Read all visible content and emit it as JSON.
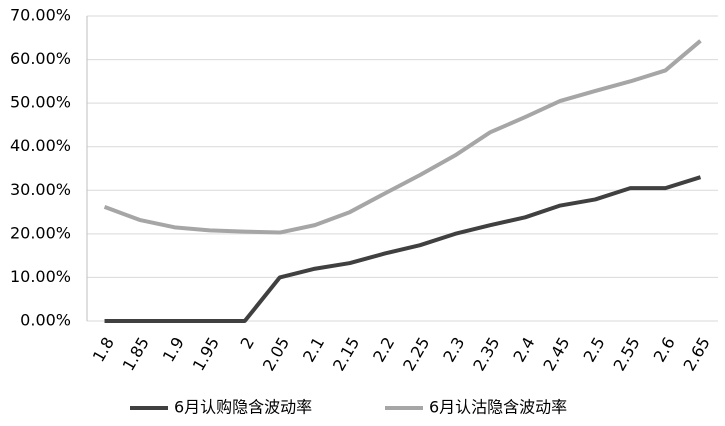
{
  "chart_data": {
    "type": "line",
    "categories": [
      "1.8",
      "1.85",
      "1.9",
      "1.95",
      "2",
      "2.05",
      "2.1",
      "2.15",
      "2.2",
      "2.25",
      "2.3",
      "2.35",
      "2.4",
      "2.45",
      "2.5",
      "2.55",
      "2.6",
      "2.65"
    ],
    "series": [
      {
        "name": "6月认购隐含波动率",
        "color": "#404040",
        "values": [
          0,
          0,
          0,
          0,
          0,
          10,
          12,
          13.3,
          15.5,
          17.4,
          20,
          22,
          23.8,
          26.5,
          27.9,
          30.5,
          30.5,
          33
        ]
      },
      {
        "name": "6月认沽隐含波动率",
        "color": "#a6a6a6",
        "values": [
          26.2,
          23.2,
          21.5,
          20.8,
          20.5,
          20.3,
          22,
          25,
          29.3,
          33.5,
          38,
          43.3,
          46.8,
          50.5,
          52.8,
          55,
          57.5,
          64.3
        ]
      }
    ],
    "ylim": [
      0,
      70
    ],
    "yticks": [
      {
        "value": 0,
        "label": "0.00%"
      },
      {
        "value": 10,
        "label": "10.00%"
      },
      {
        "value": 20,
        "label": "20.00%"
      },
      {
        "value": 30,
        "label": "30.00%"
      },
      {
        "value": 40,
        "label": "40.00%"
      },
      {
        "value": 50,
        "label": "50.00%"
      },
      {
        "value": 60,
        "label": "60.00%"
      },
      {
        "value": 70,
        "label": "70.00%"
      }
    ],
    "grid": true,
    "legend": "bottom"
  }
}
